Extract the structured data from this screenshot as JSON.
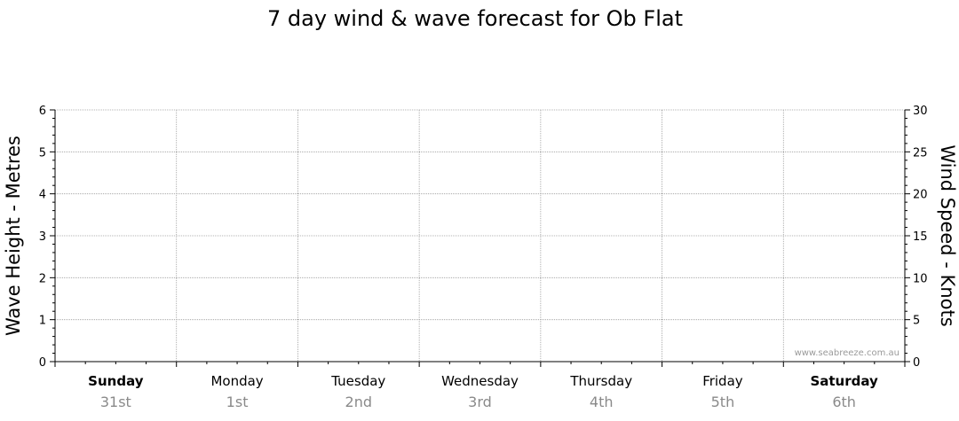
{
  "chart_data": {
    "type": "line",
    "title": "7 day wind & wave forecast for Ob Flat",
    "ylabel_left": "Wave Height - Metres",
    "ylabel_right": "Wind Speed - Knots",
    "ylim_left": [
      0,
      6
    ],
    "ylim_right": [
      0,
      30
    ],
    "left_ticks": [
      "0",
      "1",
      "2",
      "3",
      "4",
      "5",
      "6"
    ],
    "right_ticks": [
      "0",
      "5",
      "10",
      "15",
      "20",
      "25",
      "30"
    ],
    "days": [
      {
        "name": "Sunday",
        "date": "31st",
        "bold": true
      },
      {
        "name": "Monday",
        "date": "1st",
        "bold": false
      },
      {
        "name": "Tuesday",
        "date": "2nd",
        "bold": false
      },
      {
        "name": "Wednesday",
        "date": "3rd",
        "bold": false
      },
      {
        "name": "Thursday",
        "date": "4th",
        "bold": false
      },
      {
        "name": "Friday",
        "date": "5th",
        "bold": false
      },
      {
        "name": "Saturday",
        "date": "6th",
        "bold": true
      }
    ],
    "series": [],
    "grid": true,
    "watermark": "www.seabreeze.com.au"
  },
  "colors": {
    "grid": "#9a9a9a",
    "axis": "#000000",
    "date_text": "#8a8a8a"
  }
}
